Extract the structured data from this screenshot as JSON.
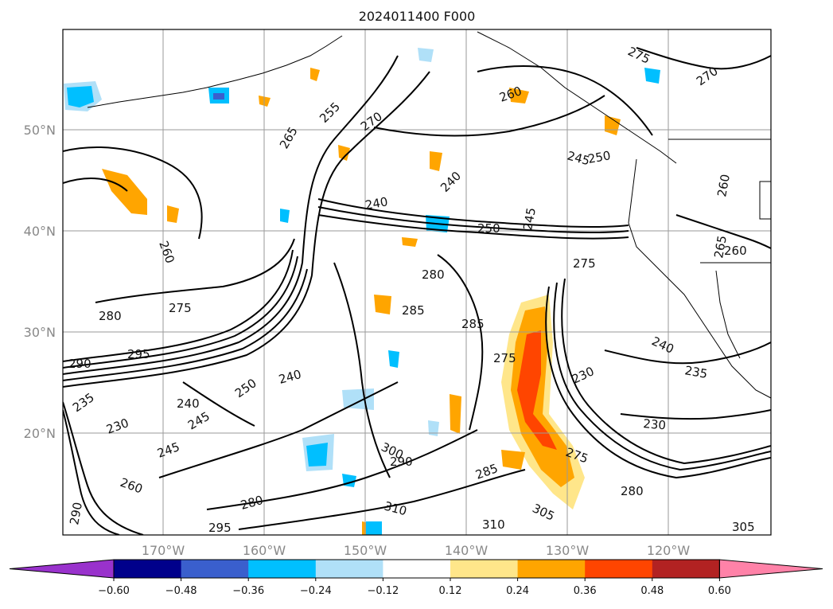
{
  "title": "2024011400 F000",
  "lat_labels": [
    "50°N",
    "40°N",
    "30°N",
    "20°N"
  ],
  "lon_labels": [
    "170°W",
    "160°W",
    "150°W",
    "140°W",
    "130°W",
    "120°W"
  ],
  "colorbar": {
    "ticks": [
      "−0.60",
      "−0.48",
      "−0.36",
      "−0.24",
      "−0.12",
      "0.12",
      "0.24",
      "0.36",
      "0.48",
      "0.60"
    ],
    "colors": [
      "#9932cc",
      "#00008b",
      "#3a5fcd",
      "#00bfff",
      "#b0e0f8",
      "#ffffff",
      "#ffe68a",
      "#ffa500",
      "#ff4500",
      "#b22222",
      "#ff82a8"
    ]
  },
  "contour_labels": [
    "275",
    "270",
    "265",
    "255",
    "260",
    "270",
    "245",
    "250",
    "265",
    "240",
    "260",
    "240",
    "250",
    "245",
    "260",
    "275",
    "260",
    "280",
    "275",
    "285",
    "285",
    "280",
    "295",
    "290",
    "235",
    "240",
    "245",
    "250",
    "230",
    "240",
    "245",
    "275",
    "230",
    "240",
    "235",
    "230",
    "280",
    "275",
    "300",
    "290",
    "285",
    "305",
    "310",
    "310",
    "295",
    "280",
    "260",
    "290",
    "305"
  ]
}
